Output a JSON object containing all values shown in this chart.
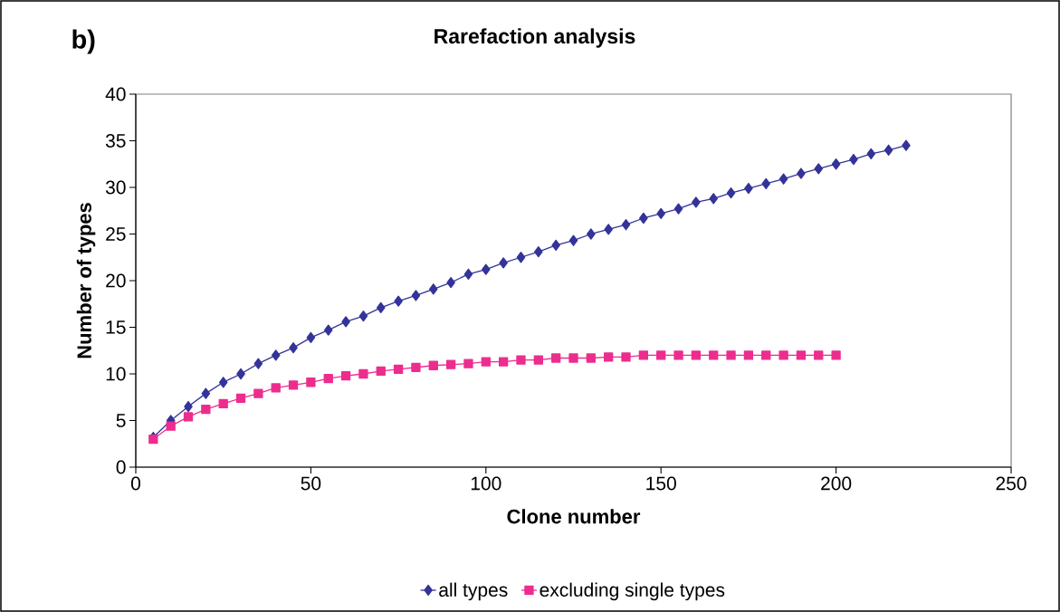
{
  "chart_data": {
    "type": "line",
    "title": "Rarefaction analysis",
    "xlabel": "Clone number",
    "ylabel": "Number of types",
    "annotations": [
      "b)"
    ],
    "xlim": [
      0,
      250
    ],
    "xticks": [
      0,
      50,
      100,
      150,
      200,
      250
    ],
    "ylim": [
      0,
      40
    ],
    "yticks": [
      0,
      5,
      10,
      15,
      20,
      25,
      30,
      35,
      40
    ],
    "grid": false,
    "legend": "bottom",
    "line_style": "solid",
    "series": [
      {
        "name": "all types",
        "color": "#333399",
        "marker": "diamond",
        "x": [
          5,
          10,
          15,
          20,
          25,
          30,
          35,
          40,
          45,
          50,
          55,
          60,
          65,
          70,
          75,
          80,
          85,
          90,
          95,
          100,
          105,
          110,
          115,
          120,
          125,
          130,
          135,
          140,
          145,
          150,
          155,
          160,
          165,
          170,
          175,
          180,
          185,
          190,
          195,
          200,
          205,
          210,
          215,
          220
        ],
        "values": [
          3.2,
          5.0,
          6.5,
          7.9,
          9.1,
          10.0,
          11.1,
          12.0,
          12.8,
          13.9,
          14.7,
          15.6,
          16.2,
          17.1,
          17.8,
          18.4,
          19.1,
          19.8,
          20.7,
          21.2,
          21.9,
          22.5,
          23.1,
          23.8,
          24.3,
          25.0,
          25.5,
          26.0,
          26.7,
          27.2,
          27.7,
          28.4,
          28.8,
          29.4,
          29.9,
          30.4,
          30.9,
          31.5,
          32.0,
          32.5,
          33.0,
          33.6,
          34.0,
          34.5
        ]
      },
      {
        "name": "excluding single types",
        "color": "#ec2d8e",
        "marker": "square",
        "x": [
          5,
          10,
          15,
          20,
          25,
          30,
          35,
          40,
          45,
          50,
          55,
          60,
          65,
          70,
          75,
          80,
          85,
          90,
          95,
          100,
          105,
          110,
          115,
          120,
          125,
          130,
          135,
          140,
          145,
          150,
          155,
          160,
          165,
          170,
          175,
          180,
          185,
          190,
          195,
          200
        ],
        "values": [
          3.0,
          4.4,
          5.4,
          6.2,
          6.8,
          7.4,
          7.9,
          8.5,
          8.8,
          9.1,
          9.5,
          9.8,
          10.0,
          10.3,
          10.5,
          10.7,
          10.9,
          11.0,
          11.1,
          11.3,
          11.3,
          11.5,
          11.5,
          11.7,
          11.7,
          11.7,
          11.8,
          11.8,
          12.0,
          12.0,
          12.0,
          12.0,
          12.0,
          12.0,
          12.0,
          12.0,
          12.0,
          12.0,
          12.0,
          12.0
        ]
      }
    ]
  }
}
